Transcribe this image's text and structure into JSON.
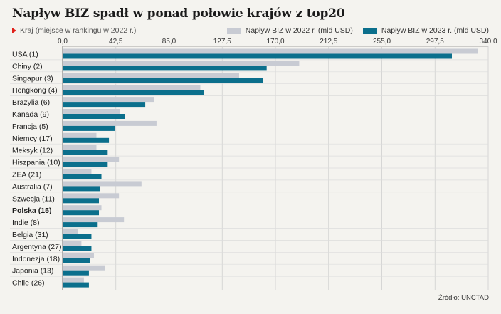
{
  "header": {
    "title": "Napływ BIZ spadł w ponad połowie krajów z top20",
    "subtitle": "Kraj (miejsce w rankingu w 2022 r.)"
  },
  "colors": {
    "series_2022": "#c8cbd3",
    "series_2023": "#0b6f8c",
    "highlight_marker": "#e0201a",
    "grid": "#cfcfcf"
  },
  "source": "Źródło: UNCTAD",
  "chart_data": {
    "type": "bar",
    "orientation": "horizontal",
    "categories": [
      "USA (1)",
      "Chiny (2)",
      "Singapur (3)",
      "Hongkong (4)",
      "Brazylia (6)",
      "Kanada (9)",
      "Francja (5)",
      "Niemcy (17)",
      "Meksyk (12)",
      "Hiszpania (10)",
      "ZEA (21)",
      "Australia (7)",
      "Szwecja (11)",
      "Polska (15)",
      "Indie (8)",
      "Belgia (31)",
      "Argentyna (27)",
      "Indonezja (18)",
      "Japonia (13)",
      "Chile (26)"
    ],
    "highlight_category": "Polska (15)",
    "series": [
      {
        "name": "Napływ BIZ w 2022 r. (mld USD)",
        "values": [
          332,
          189,
          141,
          110,
          73,
          46,
          75,
          27,
          27,
          45,
          23,
          63,
          45,
          31,
          49,
          12,
          15,
          25,
          34,
          17
        ]
      },
      {
        "name": "Napływ BIZ w 2023 r. (mld USD)",
        "values": [
          311,
          163,
          160,
          113,
          66,
          50,
          42,
          37,
          36,
          36,
          31,
          30,
          29,
          29,
          28,
          23,
          23,
          22,
          21,
          21
        ]
      }
    ],
    "x_ticks": [
      "0,0",
      "42,5",
      "85,0",
      "127,5",
      "170,0",
      "212,5",
      "255,0",
      "297,5",
      "340,0"
    ],
    "xlim": [
      0,
      340
    ],
    "grid": true,
    "legend_position": "top-right"
  }
}
